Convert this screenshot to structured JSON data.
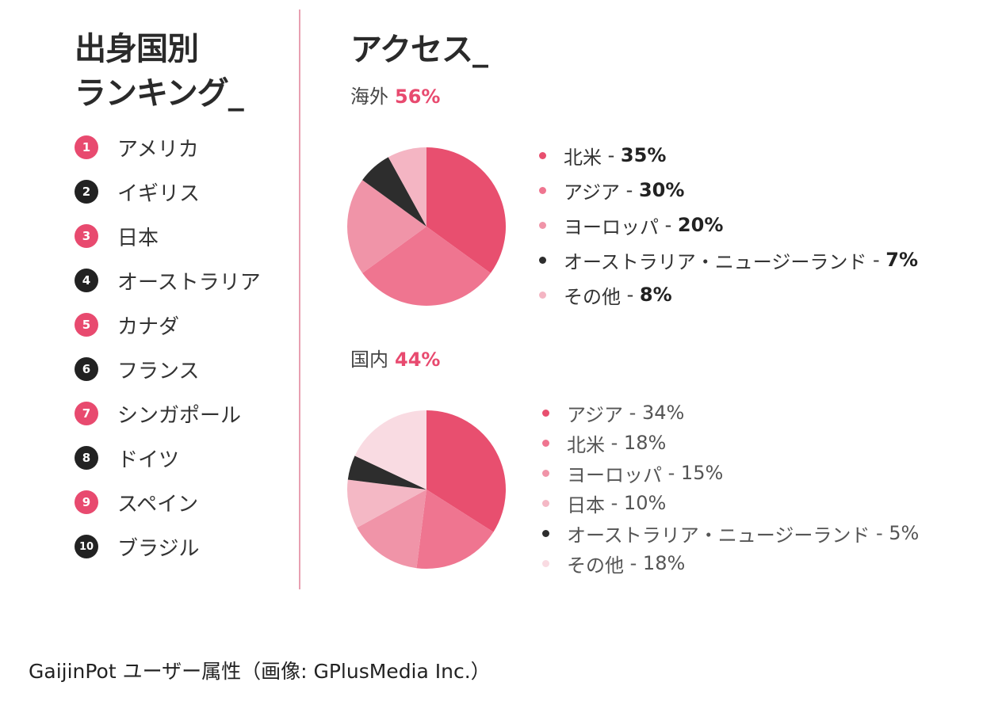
{
  "ranking": {
    "title_line1": "出身国別",
    "title_line2": "ランキング_",
    "items": [
      {
        "rank": "1",
        "name": "アメリカ",
        "color": "#e84a6f"
      },
      {
        "rank": "2",
        "name": "イギリス",
        "color": "#222222"
      },
      {
        "rank": "3",
        "name": "日本",
        "color": "#e84a6f"
      },
      {
        "rank": "4",
        "name": "オーストラリア",
        "color": "#222222"
      },
      {
        "rank": "5",
        "name": "カナダ",
        "color": "#e84a6f"
      },
      {
        "rank": "6",
        "name": "フランス",
        "color": "#222222"
      },
      {
        "rank": "7",
        "name": "シンガポール",
        "color": "#e84a6f"
      },
      {
        "rank": "8",
        "name": "ドイツ",
        "color": "#222222"
      },
      {
        "rank": "9",
        "name": "スペイン",
        "color": "#e84a6f"
      },
      {
        "rank": "10",
        "name": "ブラジル",
        "color": "#222222"
      }
    ]
  },
  "access": {
    "title": "アクセス_",
    "overseas_label": "海外",
    "overseas_pct": "56%",
    "domestic_label": "国内",
    "domestic_pct": "44%",
    "accent_color": "#e84a6f"
  },
  "chart_data": [
    {
      "type": "pie",
      "title": "海外 56%",
      "slices": [
        {
          "label": "北米",
          "value": 35,
          "value_text": "35%",
          "color": "#e84f6f"
        },
        {
          "label": "アジア",
          "value": 30,
          "value_text": "30%",
          "color": "#ef7590"
        },
        {
          "label": "ヨーロッパ",
          "value": 20,
          "value_text": "20%",
          "color": "#f094a8"
        },
        {
          "label": "オーストラリア・ニュージーランド",
          "value": 7,
          "value_text": "7%",
          "color": "#2d2d2d"
        },
        {
          "label": "その他",
          "value": 8,
          "value_text": "8%",
          "color": "#f4b5c3"
        }
      ]
    },
    {
      "type": "pie",
      "title": "国内 44%",
      "slices": [
        {
          "label": "アジア",
          "value": 34,
          "value_text": "34%",
          "color": "#e84f6f"
        },
        {
          "label": "北米",
          "value": 18,
          "value_text": "18%",
          "color": "#ef7590"
        },
        {
          "label": "ヨーロッパ",
          "value": 15,
          "value_text": "15%",
          "color": "#f094a8"
        },
        {
          "label": "日本",
          "value": 10,
          "value_text": "10%",
          "color": "#f4b8c5"
        },
        {
          "label": "オーストラリア・ニュージーランド",
          "value": 5,
          "value_text": "5%",
          "color": "#2d2d2d"
        },
        {
          "label": "その他",
          "value": 18,
          "value_text": "18%",
          "color": "#f9dbe2"
        }
      ]
    }
  ],
  "caption": "GaijinPot ユーザー属性（画像: GPlusMedia Inc.）"
}
